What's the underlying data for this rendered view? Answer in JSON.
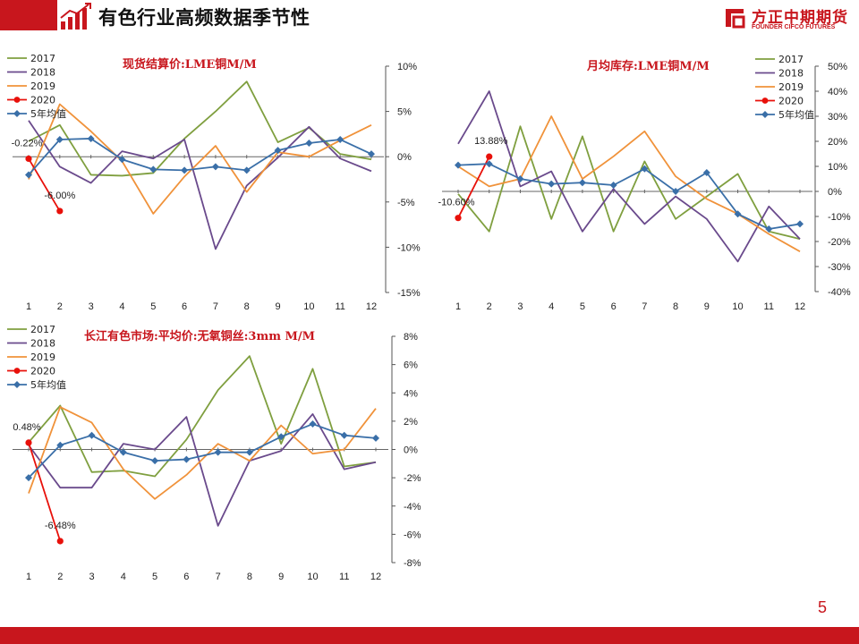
{
  "header": {
    "title": "有色行业高频数据季节性"
  },
  "logo": {
    "name_cn": "方正中期期货",
    "name_en": "FOUNDER CIFCO FUTURES"
  },
  "page_number": "5",
  "colors": {
    "accent": "#c8161d",
    "s2017": "#7f9f3f",
    "s2018": "#6a4a8c",
    "s2019": "#f0923a",
    "s2020": "#e8100a",
    "avg": "#3a6fa8"
  },
  "chart_data": [
    {
      "id": "chart1",
      "type": "line",
      "title": "现货结算价:LME铜M/M",
      "categories": [
        "1",
        "2",
        "3",
        "4",
        "5",
        "6",
        "7",
        "8",
        "9",
        "10",
        "11",
        "12"
      ],
      "ylim": [
        -15,
        10
      ],
      "yticks": [
        10,
        5,
        0,
        -5,
        -10,
        -15
      ],
      "ytick_labels": [
        "10%",
        "5%",
        "0%",
        "-5%",
        "-10%",
        "-15%"
      ],
      "series": [
        {
          "name": "2017",
          "color": "#7f9f3f",
          "marker": "none",
          "values": [
            1.7,
            3.5,
            -2.0,
            -2.1,
            -1.8,
            2.0,
            5.0,
            8.3,
            1.6,
            3.2,
            0.3,
            -0.3
          ]
        },
        {
          "name": "2018",
          "color": "#6a4a8c",
          "marker": "none",
          "values": [
            4.0,
            -1.1,
            -2.9,
            0.6,
            -0.2,
            1.9,
            -10.2,
            -3.2,
            -0.1,
            3.3,
            -0.2,
            -1.6
          ]
        },
        {
          "name": "2019",
          "color": "#f0923a",
          "marker": "none",
          "values": [
            -2.5,
            5.8,
            2.8,
            -0.5,
            -6.3,
            -2.2,
            1.2,
            -3.9,
            0.5,
            0.0,
            1.8,
            3.5
          ]
        },
        {
          "name": "2020",
          "color": "#e8100a",
          "marker": "circle",
          "values": [
            -0.22,
            -6.0,
            null,
            null,
            null,
            null,
            null,
            null,
            null,
            null,
            null,
            null
          ]
        },
        {
          "name": "5年均值",
          "color": "#3a6fa8",
          "marker": "diamond",
          "values": [
            -2.0,
            1.9,
            2.0,
            -0.3,
            -1.4,
            -1.5,
            -1.1,
            -1.5,
            0.7,
            1.5,
            1.9,
            0.3
          ]
        }
      ],
      "data_labels": [
        {
          "text": "-0.22%",
          "series": "2020",
          "index": 0
        },
        {
          "text": "-6.00%",
          "series": "2020",
          "index": 1
        }
      ]
    },
    {
      "id": "chart2",
      "type": "line",
      "title": "月均库存:LME铜M/M",
      "categories": [
        "1",
        "2",
        "3",
        "4",
        "5",
        "6",
        "7",
        "8",
        "9",
        "10",
        "11",
        "12"
      ],
      "ylim": [
        -40,
        50
      ],
      "yticks": [
        50,
        40,
        30,
        20,
        10,
        0,
        -10,
        -20,
        -30,
        -40
      ],
      "ytick_labels": [
        "50%",
        "40%",
        "30%",
        "20%",
        "10%",
        "0%",
        "-10%",
        "-20%",
        "-30%",
        "-40%"
      ],
      "series": [
        {
          "name": "2017",
          "color": "#7f9f3f",
          "marker": "none",
          "values": [
            -1.0,
            -16.0,
            26.0,
            -11.0,
            22.0,
            -16.0,
            12.0,
            -11.0,
            -2.0,
            7.0,
            -16.0,
            -19.0
          ]
        },
        {
          "name": "2018",
          "color": "#6a4a8c",
          "marker": "none",
          "values": [
            19.0,
            40.0,
            2.0,
            8.0,
            -16.0,
            1.0,
            -13.0,
            -2.0,
            -11.0,
            -28.0,
            -6.0,
            -19.0
          ]
        },
        {
          "name": "2019",
          "color": "#f0923a",
          "marker": "none",
          "values": [
            10.0,
            2.0,
            5.0,
            30.0,
            5.0,
            14.0,
            24.0,
            6.0,
            -3.0,
            -9.0,
            -17.0,
            -24.0
          ]
        },
        {
          "name": "2020",
          "color": "#e8100a",
          "marker": "circle",
          "values": [
            -10.6,
            13.88,
            null,
            null,
            null,
            null,
            null,
            null,
            null,
            null,
            null,
            null
          ]
        },
        {
          "name": "5年均值",
          "color": "#3a6fa8",
          "marker": "diamond",
          "values": [
            10.5,
            11.0,
            5.0,
            3.0,
            3.5,
            2.5,
            9.0,
            0.0,
            7.5,
            -9.0,
            -15.0,
            -13.0
          ]
        }
      ],
      "data_labels": [
        {
          "text": "-10.60%",
          "series": "2020",
          "index": 0
        },
        {
          "text": "13.88%",
          "series": "2020",
          "index": 1
        }
      ]
    },
    {
      "id": "chart3",
      "type": "line",
      "title": "长江有色市场:平均价:无氧铜丝:3mm M/M",
      "categories": [
        "1",
        "2",
        "3",
        "4",
        "5",
        "6",
        "7",
        "8",
        "9",
        "10",
        "11",
        "12"
      ],
      "ylim": [
        -8,
        8
      ],
      "yticks": [
        8,
        6,
        4,
        2,
        0,
        -2,
        -4,
        -6,
        -8
      ],
      "ytick_labels": [
        "8%",
        "6%",
        "4%",
        "2%",
        "0%",
        "-2%",
        "-4%",
        "-6%",
        "-8%"
      ],
      "series": [
        {
          "name": "2017",
          "color": "#7f9f3f",
          "marker": "none",
          "values": [
            0.5,
            3.1,
            -1.6,
            -1.5,
            -1.9,
            0.7,
            4.2,
            6.6,
            0.4,
            5.7,
            -1.2,
            -0.9
          ]
        },
        {
          "name": "2018",
          "color": "#6a4a8c",
          "marker": "none",
          "values": [
            0.3,
            -2.7,
            -2.7,
            0.4,
            0.0,
            2.3,
            -5.4,
            -0.8,
            -0.1,
            2.5,
            -1.4,
            -0.9
          ]
        },
        {
          "name": "2019",
          "color": "#f0923a",
          "marker": "none",
          "values": [
            -3.1,
            3.0,
            1.9,
            -1.4,
            -3.5,
            -1.8,
            0.4,
            -0.8,
            1.7,
            -0.3,
            0.0,
            2.9
          ]
        },
        {
          "name": "2020",
          "color": "#e8100a",
          "marker": "circle",
          "values": [
            0.48,
            -6.48,
            null,
            null,
            null,
            null,
            null,
            null,
            null,
            null,
            null,
            null
          ]
        },
        {
          "name": "5年均值",
          "color": "#3a6fa8",
          "marker": "diamond",
          "values": [
            -2.0,
            0.3,
            1.0,
            -0.2,
            -0.8,
            -0.7,
            -0.2,
            -0.2,
            0.9,
            1.8,
            1.0,
            0.8
          ]
        }
      ],
      "data_labels": [
        {
          "text": "0.48%",
          "series": "2020",
          "index": 0
        },
        {
          "text": "-6.48%",
          "series": "2020",
          "index": 1
        }
      ]
    }
  ]
}
